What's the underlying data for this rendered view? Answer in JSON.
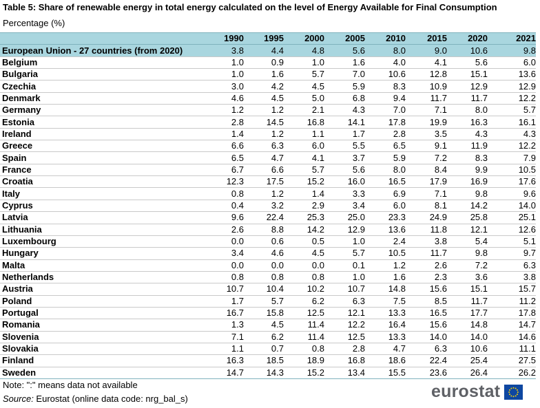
{
  "title": "Table 5: Share of renewable energy in total energy calculated on the level of Energy Available for Final Consumption",
  "subtitle": "Percentage (%)",
  "note": "Note: \":\" means data not available",
  "source_label": "Source:",
  "source_text": " Eurostat (online data code: nrg_bal_s)",
  "logo_text": "eurostat",
  "colors": {
    "header_bg": "#a9d6df",
    "flag_blue": "#0e47a1",
    "flag_star": "#ffd400"
  },
  "chart_data": {
    "type": "table",
    "title": "Table 5: Share of renewable energy in total energy calculated on the level of Energy Available for Final Consumption",
    "unit": "Percentage (%)",
    "columns": [
      "1990",
      "1995",
      "2000",
      "2005",
      "2010",
      "2015",
      "2020",
      "2021"
    ],
    "rows": [
      {
        "name": "European Union - 27 countries (from 2020)",
        "values": [
          "3.8",
          "4.4",
          "4.8",
          "5.6",
          "8.0",
          "9.0",
          "10.6",
          "9.8"
        ]
      },
      {
        "name": "Belgium",
        "values": [
          "1.0",
          "0.9",
          "1.0",
          "1.6",
          "4.0",
          "4.1",
          "5.6",
          "6.0"
        ]
      },
      {
        "name": "Bulgaria",
        "values": [
          "1.0",
          "1.6",
          "5.7",
          "7.0",
          "10.6",
          "12.8",
          "15.1",
          "13.6"
        ]
      },
      {
        "name": "Czechia",
        "values": [
          "3.0",
          "4.2",
          "4.5",
          "5.9",
          "8.3",
          "10.9",
          "12.9",
          "12.9"
        ]
      },
      {
        "name": "Denmark",
        "values": [
          "4.6",
          "4.5",
          "5.0",
          "6.8",
          "9.4",
          "11.7",
          "11.7",
          "12.2"
        ]
      },
      {
        "name": "Germany",
        "values": [
          "1.2",
          "1.2",
          "2.1",
          "4.3",
          "7.0",
          "7.1",
          "8.0",
          "5.7"
        ]
      },
      {
        "name": "Estonia",
        "values": [
          "2.8",
          "14.5",
          "16.8",
          "14.1",
          "17.8",
          "19.9",
          "16.3",
          "16.1"
        ]
      },
      {
        "name": "Ireland",
        "values": [
          "1.4",
          "1.2",
          "1.1",
          "1.7",
          "2.8",
          "3.5",
          "4.3",
          "4.3"
        ]
      },
      {
        "name": "Greece",
        "values": [
          "6.6",
          "6.3",
          "6.0",
          "5.5",
          "6.5",
          "9.1",
          "11.9",
          "12.2"
        ]
      },
      {
        "name": "Spain",
        "values": [
          "6.5",
          "4.7",
          "4.1",
          "3.7",
          "5.9",
          "7.2",
          "8.3",
          "7.9"
        ]
      },
      {
        "name": "France",
        "values": [
          "6.7",
          "6.6",
          "5.7",
          "5.6",
          "8.0",
          "8.4",
          "9.9",
          "10.5"
        ]
      },
      {
        "name": "Croatia",
        "values": [
          "12.3",
          "17.5",
          "15.2",
          "16.0",
          "16.5",
          "17.9",
          "16.9",
          "17.6"
        ]
      },
      {
        "name": "Italy",
        "values": [
          "0.8",
          "1.2",
          "1.4",
          "3.3",
          "6.9",
          "7.1",
          "9.8",
          "9.6"
        ]
      },
      {
        "name": "Cyprus",
        "values": [
          "0.4",
          "3.2",
          "2.9",
          "3.4",
          "6.0",
          "8.1",
          "14.2",
          "14.0"
        ]
      },
      {
        "name": "Latvia",
        "values": [
          "9.6",
          "22.4",
          "25.3",
          "25.0",
          "23.3",
          "24.9",
          "25.8",
          "25.1"
        ]
      },
      {
        "name": "Lithuania",
        "values": [
          "2.6",
          "8.8",
          "14.2",
          "12.9",
          "13.6",
          "11.8",
          "12.1",
          "12.6"
        ]
      },
      {
        "name": "Luxembourg",
        "values": [
          "0.0",
          "0.6",
          "0.5",
          "1.0",
          "2.4",
          "3.8",
          "5.4",
          "5.1"
        ]
      },
      {
        "name": "Hungary",
        "values": [
          "3.4",
          "4.6",
          "4.5",
          "5.7",
          "10.5",
          "11.7",
          "9.8",
          "9.7"
        ]
      },
      {
        "name": "Malta",
        "values": [
          "0.0",
          "0.0",
          "0.0",
          "0.1",
          "1.2",
          "2.6",
          "7.2",
          "6.3"
        ]
      },
      {
        "name": "Netherlands",
        "values": [
          "0.8",
          "0.8",
          "0.8",
          "1.0",
          "1.6",
          "2.3",
          "3.6",
          "3.8"
        ]
      },
      {
        "name": "Austria",
        "values": [
          "10.7",
          "10.4",
          "10.2",
          "10.7",
          "14.8",
          "15.6",
          "15.1",
          "15.7"
        ]
      },
      {
        "name": "Poland",
        "values": [
          "1.7",
          "5.7",
          "6.2",
          "6.3",
          "7.5",
          "8.5",
          "11.7",
          "11.2"
        ]
      },
      {
        "name": "Portugal",
        "values": [
          "16.7",
          "15.8",
          "12.5",
          "12.1",
          "13.3",
          "16.5",
          "17.7",
          "17.8"
        ]
      },
      {
        "name": "Romania",
        "values": [
          "1.3",
          "4.5",
          "11.4",
          "12.2",
          "16.4",
          "15.6",
          "14.8",
          "14.7"
        ]
      },
      {
        "name": "Slovenia",
        "values": [
          "7.1",
          "6.2",
          "11.4",
          "12.5",
          "13.3",
          "14.0",
          "14.0",
          "14.6"
        ]
      },
      {
        "name": "Slovakia",
        "values": [
          "1.1",
          "0.7",
          "0.8",
          "2.8",
          "4.7",
          "6.3",
          "10.6",
          "11.1"
        ]
      },
      {
        "name": "Finland",
        "values": [
          "16.3",
          "18.5",
          "18.9",
          "16.8",
          "18.6",
          "22.4",
          "25.4",
          "27.5"
        ]
      },
      {
        "name": "Sweden",
        "values": [
          "14.7",
          "14.3",
          "15.2",
          "13.4",
          "15.5",
          "23.6",
          "26.4",
          "26.2"
        ]
      }
    ]
  }
}
